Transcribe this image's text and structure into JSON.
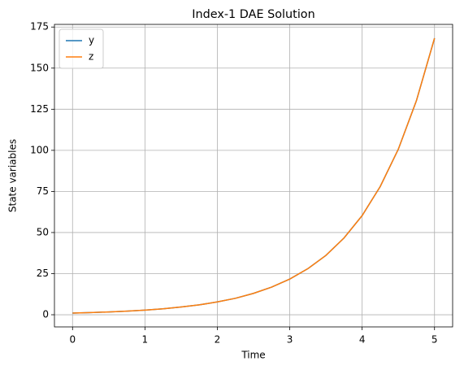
{
  "chart_data": {
    "type": "line",
    "title": "Index-1 DAE Solution",
    "xlabel": "Time",
    "ylabel": "State variables",
    "x": [
      0,
      0.25,
      0.5,
      0.75,
      1,
      1.25,
      1.5,
      1.75,
      2,
      2.25,
      2.5,
      2.75,
      3,
      3.25,
      3.5,
      3.75,
      4,
      4.25,
      4.5,
      4.75,
      5
    ],
    "series": [
      {
        "name": "y",
        "color": "#1f77b4",
        "values": [
          1,
          1.3,
          1.7,
          2.2,
          2.8,
          3.6,
          4.7,
          6.0,
          7.8,
          10.0,
          13.0,
          16.8,
          21.7,
          28.0,
          36.1,
          46.7,
          60.3,
          78.0,
          100.7,
          130.2,
          168.2
        ]
      },
      {
        "name": "z",
        "color": "#ff7f0e",
        "values": [
          1,
          1.3,
          1.7,
          2.2,
          2.8,
          3.6,
          4.7,
          6.0,
          7.8,
          10.0,
          13.0,
          16.8,
          21.7,
          28.0,
          36.1,
          46.7,
          60.3,
          78.0,
          100.7,
          130.2,
          168.2
        ]
      }
    ],
    "xlim": [
      -0.25,
      5.25
    ],
    "xticks": [
      0,
      1,
      2,
      3,
      4,
      5
    ],
    "ylim": [
      -7.4,
      176.6
    ],
    "yticks": [
      0,
      25,
      50,
      75,
      100,
      125,
      150,
      175
    ],
    "grid": true,
    "legend": "upper-left"
  }
}
